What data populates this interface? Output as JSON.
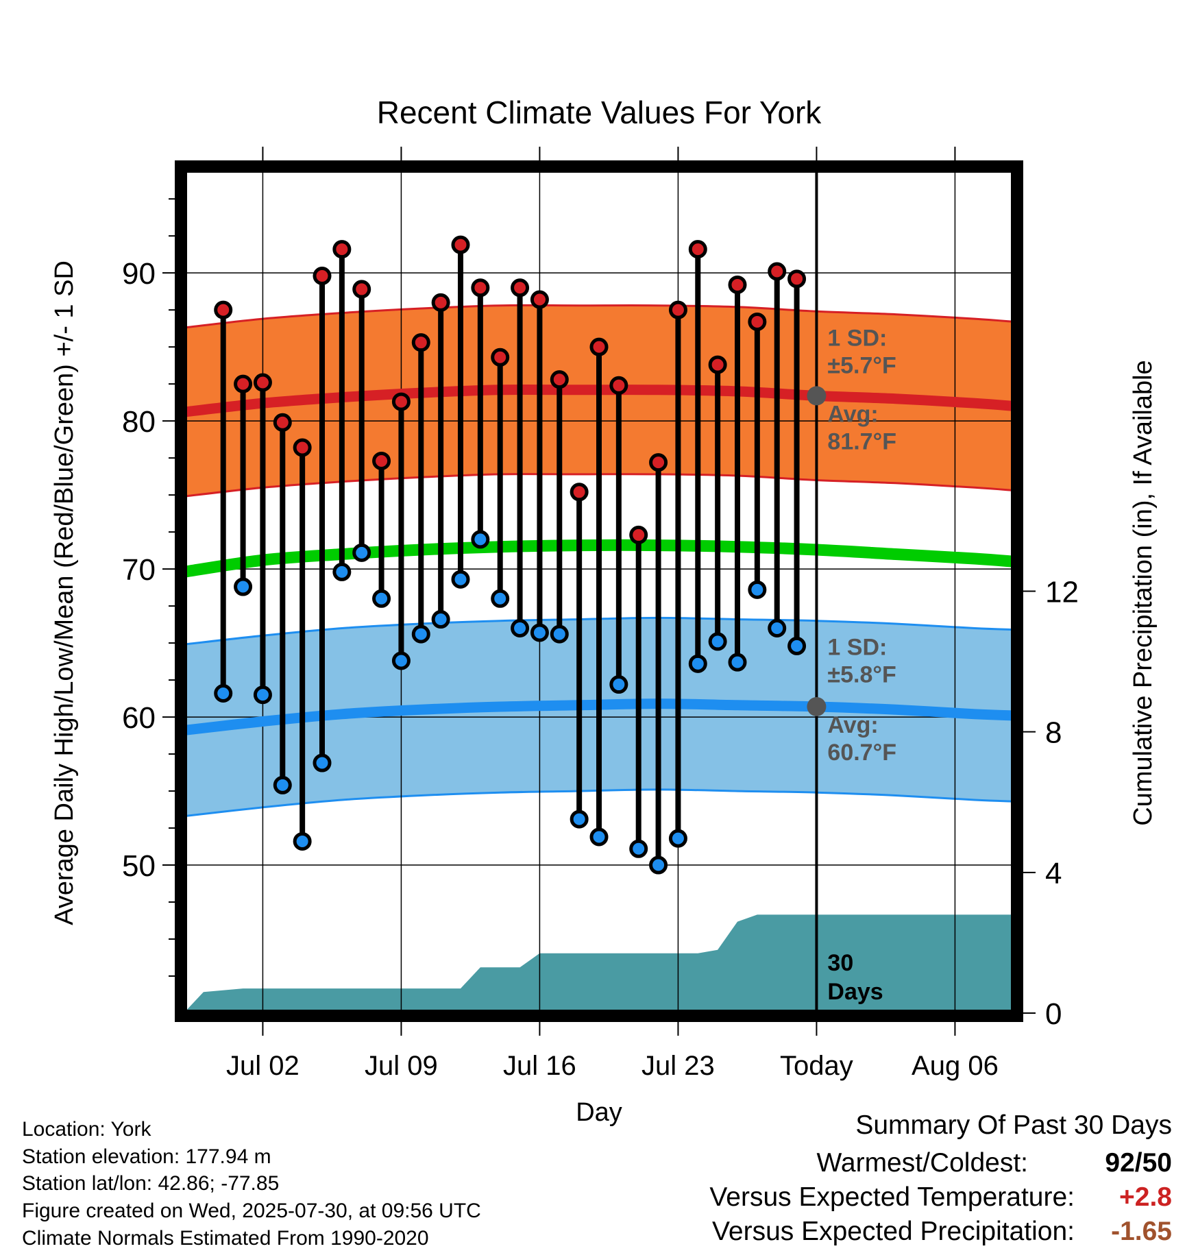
{
  "chart_data": {
    "type": "line",
    "title": "Recent Climate Values For York",
    "xlabel": "Day",
    "ylabel": "Average Daily High/Low/Mean (Red/Blue/Green) +/- 1 SD",
    "y2label": "Cumulative Precipitation (in), If Available",
    "ylim": [
      40,
      97
    ],
    "y2lim": [
      0,
      24
    ],
    "yticks": [
      50,
      60,
      70,
      80,
      90
    ],
    "y2ticks": [
      0,
      4,
      8,
      12
    ],
    "xlim": [
      "2025-06-28",
      "2025-08-09"
    ],
    "xtick_dates": [
      "2025-07-02",
      "2025-07-09",
      "2025-07-16",
      "2025-07-23",
      "2025-07-30",
      "2025-08-06"
    ],
    "xtick_labels": [
      "Jul 02",
      "Jul 09",
      "Jul 16",
      "Jul 23",
      "Today",
      "Aug 06"
    ],
    "today": "2025-07-30",
    "grid": true,
    "observations": {
      "dates": [
        "2025-06-30",
        "2025-07-01",
        "2025-07-02",
        "2025-07-03",
        "2025-07-04",
        "2025-07-05",
        "2025-07-06",
        "2025-07-07",
        "2025-07-08",
        "2025-07-09",
        "2025-07-10",
        "2025-07-11",
        "2025-07-12",
        "2025-07-13",
        "2025-07-14",
        "2025-07-15",
        "2025-07-16",
        "2025-07-17",
        "2025-07-18",
        "2025-07-19",
        "2025-07-20",
        "2025-07-21",
        "2025-07-22",
        "2025-07-23",
        "2025-07-24",
        "2025-07-25",
        "2025-07-26",
        "2025-07-27",
        "2025-07-28",
        "2025-07-29"
      ],
      "highs": [
        87.5,
        82.5,
        82.6,
        79.9,
        78.2,
        89.8,
        91.6,
        88.9,
        77.3,
        81.3,
        85.3,
        88.0,
        91.9,
        89.0,
        84.3,
        89.0,
        88.2,
        82.8,
        75.2,
        85.0,
        82.4,
        72.3,
        77.2,
        87.5,
        91.6,
        83.8,
        89.2,
        86.7,
        90.1,
        89.6
      ],
      "lows": [
        61.6,
        68.8,
        61.5,
        55.4,
        51.6,
        56.9,
        69.8,
        71.1,
        68.0,
        63.8,
        65.6,
        66.6,
        69.3,
        72.0,
        68.0,
        66.0,
        65.7,
        65.6,
        53.1,
        51.9,
        62.2,
        51.1,
        50.0,
        51.8,
        63.6,
        65.1,
        63.7,
        68.6,
        66.0,
        64.8
      ]
    },
    "normals": {
      "dates": [
        "2025-06-28",
        "2025-07-02",
        "2025-07-06",
        "2025-07-10",
        "2025-07-14",
        "2025-07-18",
        "2025-07-22",
        "2025-07-26",
        "2025-07-30",
        "2025-08-03",
        "2025-08-07",
        "2025-08-09"
      ],
      "high_avg": [
        80.6,
        81.2,
        81.6,
        81.9,
        82.1,
        82.1,
        82.1,
        82.0,
        81.7,
        81.5,
        81.2,
        81.0
      ],
      "low_avg": [
        59.1,
        59.7,
        60.2,
        60.5,
        60.7,
        60.8,
        60.9,
        60.8,
        60.7,
        60.5,
        60.2,
        60.1
      ],
      "mean_avg": [
        69.8,
        70.6,
        71.0,
        71.3,
        71.5,
        71.6,
        71.6,
        71.5,
        71.3,
        71.0,
        70.7,
        70.5
      ],
      "high_sd": 5.7,
      "low_sd": 5.8
    },
    "precipitation": {
      "dates": [
        "2025-06-28",
        "2025-06-29",
        "2025-07-01",
        "2025-07-09",
        "2025-07-12",
        "2025-07-13",
        "2025-07-15",
        "2025-07-16",
        "2025-07-24",
        "2025-07-25",
        "2025-07-26",
        "2025-07-27",
        "2025-07-30",
        "2025-08-09"
      ],
      "cumulative": [
        0,
        0.6,
        0.7,
        0.7,
        0.7,
        1.3,
        1.3,
        1.7,
        1.7,
        1.8,
        2.6,
        2.8,
        2.8,
        2.8
      ]
    },
    "annotations": {
      "high_sd_label": "1 SD:",
      "high_sd_value": "±5.7°F",
      "high_avg_label": "Avg:",
      "high_avg_value": "81.7°F",
      "low_sd_label": "1 SD:",
      "low_sd_value": "±5.8°F",
      "low_avg_label": "Avg:",
      "low_avg_value": "60.7°F",
      "precip_label_1": "30",
      "precip_label_2": "Days"
    },
    "colors": {
      "high_band": "#f47a30",
      "high_line": "#d62025",
      "low_band": "#85c1e6",
      "low_line": "#1e8ef0",
      "mean_line": "#00cc00",
      "precip": "#4a9ba3",
      "high_dot": "#d62025",
      "low_dot": "#1e8ef0",
      "annotation_text": "#555555",
      "warm_value": "#cc2222",
      "precip_value": "#a0522d"
    }
  },
  "footer": {
    "location": "Location: York",
    "elevation": "Station elevation: 177.94 m",
    "latlon": "Station lat/lon: 42.86; -77.85",
    "created": "Figure created on Wed, 2025-07-30, at 09:56 UTC",
    "normals": "Climate Normals Estimated From 1990-2020"
  },
  "summary": {
    "title": "Summary Of Past 30 Days",
    "warmest_label": "Warmest/Coldest:",
    "warmest_value": "92/50",
    "temp_label": "Versus Expected Temperature:",
    "temp_value": "+2.8",
    "precip_label": "Versus Expected Precipitation:",
    "precip_value": "-1.65"
  }
}
